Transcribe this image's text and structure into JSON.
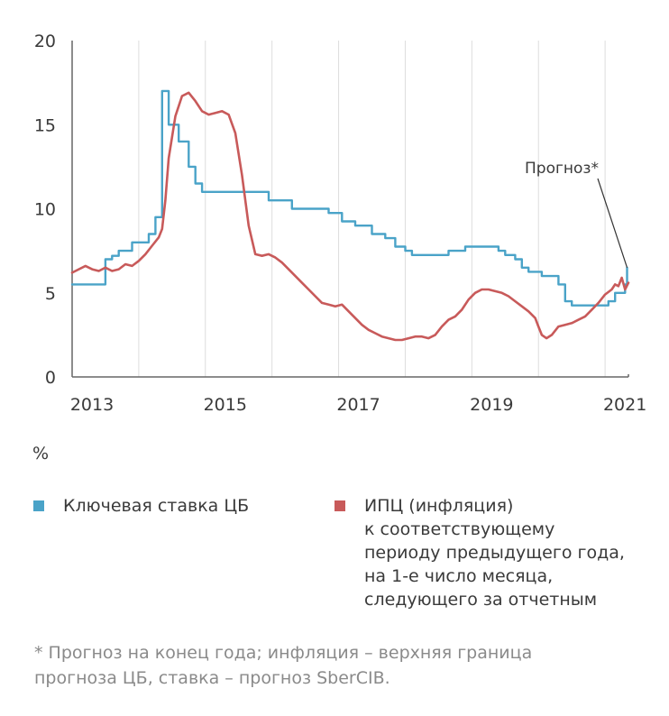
{
  "chart_data": {
    "type": "line",
    "unit_label": "%",
    "x_ticks": [
      "2013",
      "2015",
      "2017",
      "2019",
      "2021"
    ],
    "x_range": [
      2013.0,
      2021.35
    ],
    "y_ticks": [
      "20",
      "15",
      "10",
      "5",
      "0"
    ],
    "ylim": [
      0,
      20
    ],
    "grid": "vertical",
    "colors": {
      "key_rate": "#4aa3c8",
      "cpi": "#c85a5a",
      "axis": "#666666",
      "grid": "#dddddd"
    },
    "series": [
      {
        "name": "Ключевая ставка ЦБ",
        "key": "key_rate",
        "step": true,
        "points": [
          [
            2013.0,
            5.5
          ],
          [
            2013.5,
            5.5
          ],
          [
            2013.5,
            7.0
          ],
          [
            2013.6,
            7.0
          ],
          [
            2013.6,
            7.2
          ],
          [
            2013.7,
            7.2
          ],
          [
            2013.7,
            7.5
          ],
          [
            2013.9,
            7.5
          ],
          [
            2013.9,
            8.0
          ],
          [
            2014.15,
            8.0
          ],
          [
            2014.15,
            8.5
          ],
          [
            2014.25,
            8.5
          ],
          [
            2014.25,
            9.5
          ],
          [
            2014.35,
            9.5
          ],
          [
            2014.35,
            17.0
          ],
          [
            2014.45,
            17.0
          ],
          [
            2014.45,
            15.0
          ],
          [
            2014.6,
            15.0
          ],
          [
            2014.6,
            14.0
          ],
          [
            2014.75,
            14.0
          ],
          [
            2014.75,
            12.5
          ],
          [
            2014.85,
            12.5
          ],
          [
            2014.85,
            11.5
          ],
          [
            2014.95,
            11.5
          ],
          [
            2014.95,
            11.0
          ],
          [
            2015.95,
            11.0
          ],
          [
            2015.95,
            10.5
          ],
          [
            2016.3,
            10.5
          ],
          [
            2016.3,
            10.0
          ],
          [
            2016.85,
            10.0
          ],
          [
            2016.85,
            9.75
          ],
          [
            2017.05,
            9.75
          ],
          [
            2017.05,
            9.25
          ],
          [
            2017.25,
            9.25
          ],
          [
            2017.25,
            9.0
          ],
          [
            2017.5,
            9.0
          ],
          [
            2017.5,
            8.5
          ],
          [
            2017.7,
            8.5
          ],
          [
            2017.7,
            8.25
          ],
          [
            2017.85,
            8.25
          ],
          [
            2017.85,
            7.75
          ],
          [
            2018.0,
            7.75
          ],
          [
            2018.0,
            7.5
          ],
          [
            2018.1,
            7.5
          ],
          [
            2018.1,
            7.25
          ],
          [
            2018.65,
            7.25
          ],
          [
            2018.65,
            7.5
          ],
          [
            2018.9,
            7.5
          ],
          [
            2018.9,
            7.75
          ],
          [
            2019.4,
            7.75
          ],
          [
            2019.4,
            7.5
          ],
          [
            2019.5,
            7.5
          ],
          [
            2019.5,
            7.25
          ],
          [
            2019.65,
            7.25
          ],
          [
            2019.65,
            7.0
          ],
          [
            2019.75,
            7.0
          ],
          [
            2019.75,
            6.5
          ],
          [
            2019.85,
            6.5
          ],
          [
            2019.85,
            6.25
          ],
          [
            2020.05,
            6.25
          ],
          [
            2020.05,
            6.0
          ],
          [
            2020.3,
            6.0
          ],
          [
            2020.3,
            5.5
          ],
          [
            2020.4,
            5.5
          ],
          [
            2020.4,
            4.5
          ],
          [
            2020.5,
            4.5
          ],
          [
            2020.5,
            4.25
          ],
          [
            2021.05,
            4.25
          ],
          [
            2021.05,
            4.5
          ],
          [
            2021.15,
            4.5
          ],
          [
            2021.15,
            5.0
          ],
          [
            2021.3,
            5.0
          ],
          [
            2021.3,
            5.5
          ],
          [
            2021.33,
            5.5
          ],
          [
            2021.33,
            6.5
          ]
        ]
      },
      {
        "name": "ИПЦ (инфляция) к соответствующему периоду предыдущего года, на 1-е число месяца, следующего за отчетным",
        "key": "cpi",
        "step": false,
        "points": [
          [
            2013.0,
            6.2
          ],
          [
            2013.1,
            6.4
          ],
          [
            2013.2,
            6.6
          ],
          [
            2013.3,
            6.4
          ],
          [
            2013.4,
            6.3
          ],
          [
            2013.5,
            6.5
          ],
          [
            2013.6,
            6.3
          ],
          [
            2013.7,
            6.4
          ],
          [
            2013.8,
            6.7
          ],
          [
            2013.9,
            6.6
          ],
          [
            2014.0,
            6.9
          ],
          [
            2014.1,
            7.3
          ],
          [
            2014.2,
            7.8
          ],
          [
            2014.3,
            8.3
          ],
          [
            2014.35,
            8.8
          ],
          [
            2014.4,
            10.5
          ],
          [
            2014.45,
            13.0
          ],
          [
            2014.55,
            15.5
          ],
          [
            2014.65,
            16.7
          ],
          [
            2014.75,
            16.9
          ],
          [
            2014.85,
            16.4
          ],
          [
            2014.95,
            15.8
          ],
          [
            2015.05,
            15.6
          ],
          [
            2015.15,
            15.7
          ],
          [
            2015.25,
            15.8
          ],
          [
            2015.35,
            15.6
          ],
          [
            2015.45,
            14.5
          ],
          [
            2015.55,
            12.0
          ],
          [
            2015.65,
            9.0
          ],
          [
            2015.75,
            7.3
          ],
          [
            2015.85,
            7.2
          ],
          [
            2015.95,
            7.3
          ],
          [
            2016.05,
            7.1
          ],
          [
            2016.15,
            6.8
          ],
          [
            2016.25,
            6.4
          ],
          [
            2016.35,
            6.0
          ],
          [
            2016.45,
            5.6
          ],
          [
            2016.55,
            5.2
          ],
          [
            2016.65,
            4.8
          ],
          [
            2016.75,
            4.4
          ],
          [
            2016.85,
            4.3
          ],
          [
            2016.95,
            4.2
          ],
          [
            2017.05,
            4.3
          ],
          [
            2017.15,
            3.9
          ],
          [
            2017.25,
            3.5
          ],
          [
            2017.35,
            3.1
          ],
          [
            2017.45,
            2.8
          ],
          [
            2017.55,
            2.6
          ],
          [
            2017.65,
            2.4
          ],
          [
            2017.75,
            2.3
          ],
          [
            2017.85,
            2.2
          ],
          [
            2017.95,
            2.2
          ],
          [
            2018.05,
            2.3
          ],
          [
            2018.15,
            2.4
          ],
          [
            2018.25,
            2.4
          ],
          [
            2018.35,
            2.3
          ],
          [
            2018.45,
            2.5
          ],
          [
            2018.55,
            3.0
          ],
          [
            2018.65,
            3.4
          ],
          [
            2018.75,
            3.6
          ],
          [
            2018.85,
            4.0
          ],
          [
            2018.95,
            4.6
          ],
          [
            2019.05,
            5.0
          ],
          [
            2019.15,
            5.2
          ],
          [
            2019.25,
            5.2
          ],
          [
            2019.35,
            5.1
          ],
          [
            2019.45,
            5.0
          ],
          [
            2019.55,
            4.8
          ],
          [
            2019.65,
            4.5
          ],
          [
            2019.75,
            4.2
          ],
          [
            2019.85,
            3.9
          ],
          [
            2019.95,
            3.5
          ],
          [
            2020.0,
            3.0
          ],
          [
            2020.05,
            2.5
          ],
          [
            2020.12,
            2.3
          ],
          [
            2020.2,
            2.5
          ],
          [
            2020.3,
            3.0
          ],
          [
            2020.4,
            3.1
          ],
          [
            2020.5,
            3.2
          ],
          [
            2020.6,
            3.4
          ],
          [
            2020.7,
            3.6
          ],
          [
            2020.8,
            4.0
          ],
          [
            2020.9,
            4.4
          ],
          [
            2021.0,
            4.9
          ],
          [
            2021.1,
            5.2
          ],
          [
            2021.15,
            5.5
          ],
          [
            2021.2,
            5.4
          ],
          [
            2021.25,
            5.9
          ],
          [
            2021.3,
            5.2
          ],
          [
            2021.35,
            5.6
          ]
        ]
      }
    ],
    "annotation": {
      "text": "Прогноз*",
      "points_to": [
        2021.33,
        6.5
      ]
    }
  },
  "legend": {
    "unit": "%",
    "key_rate_label": "Ключевая ставка ЦБ",
    "cpi_label_lines": [
      "ИПЦ (инфляция)",
      "к соответствующему",
      "периоду предыдущего года,",
      "на 1-е число месяца,",
      "следующего за отчетным"
    ]
  },
  "footnote_lines": [
    "* Прогноз на конец года; инфляция – верхняя граница",
    "прогноза ЦБ, ставка – прогноз SberCIB."
  ]
}
